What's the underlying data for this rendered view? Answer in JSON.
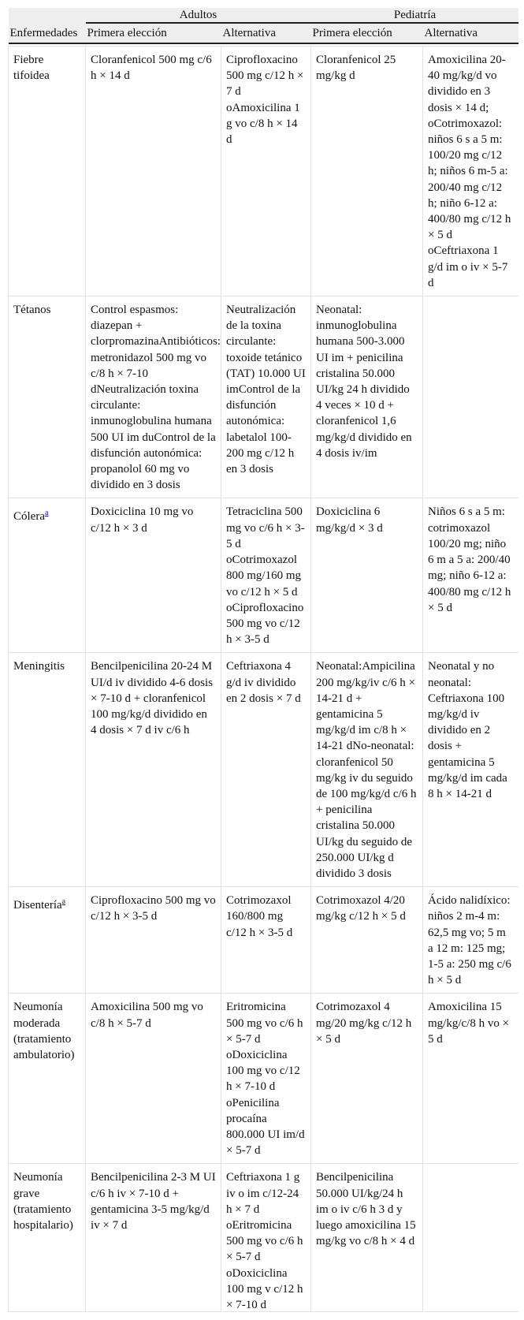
{
  "header": {
    "groups": [
      "Adultos",
      "Pediatría"
    ],
    "columns": [
      "Enfermedades",
      "Primera elección",
      "Alternativa",
      "Primera elección",
      "Alternativa"
    ]
  },
  "rows": [
    {
      "disease": "Fiebre tifoidea",
      "footnote": "",
      "cells": [
        "Cloranfenicol 500 mg c/6 h × 14 d",
        "Ciprofloxacino 500 mg c/12 h × 7 d oAmoxicilina 1 g vo c/8 h × 14 d",
        "Cloranfenicol 25 mg/kg d",
        "Amoxicilina 20-40 mg/kg/d vo dividido en 3 dosis × 14 d; oCotrimoxazol: niños 6 s a 5 m: 100/20 mg c/12 h; niños 6 m-5 a: 200/40 mg c/12 h; niño 6-12 a: 400/80 mg c/12 h × 5 d oCeftriaxona 1 g/d im o iv × 5-7 d"
      ]
    },
    {
      "disease": "Tétanos",
      "footnote": "",
      "cells": [
        "Control espasmos: diazepan + clorpromazinaAntibióticos: metronidazol 500 mg vo c/8 h × 7-10 dNeutralización toxina circulante: inmunoglobulina humana 500 UI im duControl de la disfunción autonómica: propanolol 60 mg vo dividido en 3 dosis",
        "Neutralización de la toxina circulante: toxoide tetánico (TAT) 10.000 UI imControl de la disfunción autonómica: labetalol 100-200 mg c/12 h en 3 dosis",
        "Neonatal: inmunoglobulina humana 500-3.000 UI im + penicilina cristalina 50.000 UI/kg 24 h dividido 4 veces × 10 d + cloranfenicol 1,6 mg/kg/d dividido en 4 dosis iv/im",
        ""
      ]
    },
    {
      "disease": "Cólera",
      "footnote": "a",
      "cells": [
        "Doxiciclina 10 mg vo c/12  h × 3 d",
        "Tetraciclina 500  mg vo c/6 h × 3-5 d oCotrimoxazol 800 mg/160 mg vo c/12 h × 5 d oCiprofloxacino 500 mg vo c/12 h × 3-5 d",
        "Doxiciclina 6 mg/kg/d × 3 d",
        "Niños 6 s a 5 m: cotrimoxazol 100/20 mg; niño 6 m a 5 a: 200/40 mg; niño 6-12 a: 400/80 mg c/12 h × 5 d"
      ]
    },
    {
      "disease": "Meningitis",
      "footnote": "",
      "cells": [
        "Bencilpenicilina 20-24 M UI/d iv dividido 4-6 dosis × 7-10 d + cloranfenicol 100 mg/kg/d dividido en 4 dosis × 7 d iv c/6 h",
        "Ceftriaxona 4 g/d iv dividido en 2 dosis × 7 d",
        "Neonatal:Ampicilina 200 mg/kg/iv c/6 h × 14-21 d + gentamicina 5 mg/kg/d im c/8 h × 14-21 dNo-neonatal: cloranfenicol 50 mg/kg iv du seguido de 100 mg/kg/d c/6 h + penicilina cristalina 50.000 UI/kg du seguido de 250.000 UI/kg d dividido 3 dosis",
        "Neonatal y no neonatal: Ceftriaxona 100 mg/kg/d iv dividido en 2 dosis + gentamicina 5 mg/kg/d im cada 8 h × 14-21 d"
      ]
    },
    {
      "disease": "Disentería",
      "footnote": "a",
      "cells": [
        "Ciprofloxacino 500 mg vo c/12 h × 3-5 d",
        "Cotrimozaxol 160/800 mg c/12 h × 3-5 d",
        "Cotrimoxazol 4/20 mg/kg c/12 h × 5 d",
        "Ácido nalidíxico: niños 2 m-4 m: 62,5 mg vo; 5 m a 12 m: 125 mg; 1-5 a: 250 mg c/6 h × 5 d"
      ]
    },
    {
      "disease": "Neumonía moderada (tratamiento ambulatorio)",
      "footnote": "",
      "cells": [
        "Amoxicilina 500 mg vo c/8 h × 5-7 d",
        "Eritromicina 500 mg vo c/6 h × 5-7 d oDoxiciclina 100 mg vo c/12 h × 7-10 d oPenicilina procaína 800.000 UI im/d × 5-7 d",
        "Cotrimozaxol 4 mg/20 mg/kg c/12 h × 5 d",
        "Amoxicilina 15  mg/kg/c/8 h vo × 5 d"
      ]
    },
    {
      "disease": "Neumonía grave (tratamiento hospitalario)",
      "footnote": "",
      "cells": [
        "Bencilpenicilina 2-3 M UI c/6 h iv × 7-10 d + gentamicina 3-5 mg/kg/d iv × 7 d",
        "Ceftriaxona 1 g iv o im c/12-24 h × 7 d oEritromicina 500 mg vo c/6 h × 5-7 d oDoxiciclina 100 mg v c/12 h × 7-10  d",
        "Bencilpenicilina 50.000 UI/kg/24 h im o iv c/6 h 3 d y luego amoxicilina 15 mg/kg vo c/8 h × 4 d",
        ""
      ]
    }
  ]
}
